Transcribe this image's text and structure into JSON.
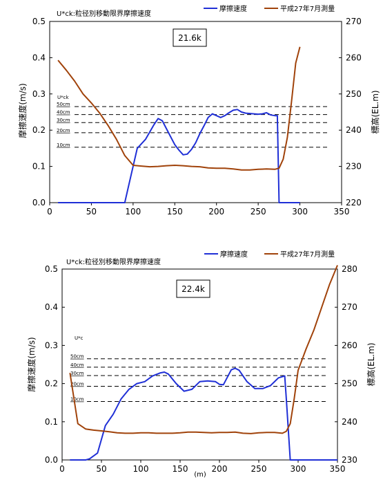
{
  "legend": {
    "friction": "摩擦速度",
    "survey": "平成27年7月測量"
  },
  "chart_data": [
    {
      "type": "line",
      "station": "21.6k",
      "uck_title": "U*ck:粒径別移動限界摩擦速度",
      "ylabel_left": "摩擦速度(m/s)",
      "ylabel_right": "標高(EL.m)",
      "xlim": [
        0,
        350
      ],
      "ylim_left": [
        0,
        0.5
      ],
      "ylim_right": [
        220,
        270
      ],
      "x_ticks": [
        0,
        50,
        100,
        150,
        200,
        250,
        300,
        350
      ],
      "y_ticks_left": [
        "0.0",
        "0.1",
        "0.2",
        "0.3",
        "0.4",
        "0.5"
      ],
      "y_ticks_right": [
        "220",
        "230",
        "240",
        "250",
        "260",
        "270"
      ],
      "threshold_header": "U*ck",
      "thresholds": [
        {
          "label": "50cm",
          "value": 0.265
        },
        {
          "label": "40cm",
          "value": 0.243
        },
        {
          "label": "30cm",
          "value": 0.221
        },
        {
          "label": "20cm",
          "value": 0.193
        },
        {
          "label": "10cm",
          "value": 0.153
        }
      ],
      "series": [
        {
          "name": "摩擦速度",
          "axis": "left",
          "color": "#1f2fd6",
          "x": [
            10,
            90,
            95,
            105,
            115,
            125,
            130,
            135,
            140,
            145,
            150,
            155,
            160,
            165,
            170,
            175,
            180,
            185,
            190,
            195,
            200,
            205,
            210,
            215,
            220,
            225,
            230,
            235,
            240,
            245,
            250,
            255,
            260,
            265,
            270,
            273,
            275,
            300
          ],
          "y": [
            0,
            0,
            0.05,
            0.15,
            0.175,
            0.215,
            0.232,
            0.226,
            0.204,
            0.182,
            0.16,
            0.145,
            0.132,
            0.134,
            0.147,
            0.165,
            0.19,
            0.212,
            0.235,
            0.245,
            0.24,
            0.235,
            0.24,
            0.248,
            0.255,
            0.257,
            0.25,
            0.247,
            0.246,
            0.245,
            0.244,
            0.245,
            0.248,
            0.242,
            0.24,
            0.24,
            0,
            0
          ]
        },
        {
          "name": "平成27年7月測量",
          "axis": "right",
          "color": "#a0420a",
          "x": [
            10,
            20,
            30,
            40,
            50,
            60,
            70,
            80,
            90,
            100,
            110,
            120,
            130,
            140,
            150,
            160,
            170,
            180,
            190,
            200,
            210,
            220,
            230,
            240,
            250,
            260,
            270,
            275,
            280,
            285,
            290,
            295,
            300
          ],
          "y": [
            259.3,
            256.5,
            253.5,
            250,
            247.5,
            244.7,
            241.3,
            237.5,
            233,
            230.3,
            230.1,
            229.9,
            230,
            230.2,
            230.3,
            230.2,
            230,
            229.9,
            229.6,
            229.5,
            229.5,
            229.3,
            229,
            229,
            229.2,
            229.3,
            229.2,
            229.5,
            232,
            238,
            248,
            258.5,
            263
          ]
        }
      ]
    },
    {
      "type": "line",
      "station": "22.4k",
      "uck_title": "U*ck:粒径別移動限界摩擦速度",
      "ylabel_left": "摩擦速度(m/s)",
      "ylabel_right": "標高(EL.m)",
      "xlabel": "(m)",
      "xlim": [
        0,
        350
      ],
      "ylim_left": [
        0,
        0.5
      ],
      "ylim_right": [
        230,
        280
      ],
      "x_ticks": [
        0,
        50,
        100,
        150,
        200,
        250,
        300,
        350
      ],
      "y_ticks_left": [
        "0.0",
        "0.1",
        "0.2",
        "0.3",
        "0.4",
        "0.5"
      ],
      "y_ticks_right": [
        "230",
        "240",
        "250",
        "260",
        "270",
        "280"
      ],
      "threshold_header": "U*c",
      "thresholds": [
        {
          "label": "50cm",
          "value": 0.265
        },
        {
          "label": "40cm",
          "value": 0.243
        },
        {
          "label": "30cm",
          "value": 0.221
        },
        {
          "label": "20cm",
          "value": 0.193
        },
        {
          "label": "10cm",
          "value": 0.153
        }
      ],
      "series": [
        {
          "name": "摩擦速度",
          "axis": "left",
          "color": "#1f2fd6",
          "x": [
            10,
            30,
            35,
            45,
            55,
            65,
            75,
            85,
            95,
            105,
            115,
            125,
            130,
            135,
            145,
            155,
            165,
            175,
            185,
            195,
            200,
            205,
            215,
            220,
            225,
            235,
            245,
            255,
            265,
            275,
            283,
            285,
            290,
            350
          ],
          "y": [
            0,
            0,
            0.003,
            0.018,
            0.09,
            0.12,
            0.16,
            0.185,
            0.2,
            0.205,
            0.22,
            0.228,
            0.23,
            0.225,
            0.2,
            0.18,
            0.185,
            0.205,
            0.207,
            0.205,
            0.198,
            0.197,
            0.236,
            0.24,
            0.235,
            0.205,
            0.187,
            0.187,
            0.195,
            0.215,
            0.22,
            0.16,
            0,
            0
          ]
        },
        {
          "name": "平成27年7月測量",
          "axis": "right",
          "color": "#a0420a",
          "x": [
            10,
            20,
            30,
            40,
            50,
            60,
            70,
            80,
            90,
            100,
            110,
            120,
            130,
            140,
            150,
            160,
            170,
            180,
            190,
            200,
            210,
            220,
            230,
            240,
            250,
            260,
            270,
            280,
            285,
            290,
            295,
            300,
            310,
            320,
            330,
            340,
            350
          ],
          "y": [
            252.8,
            239.5,
            238.1,
            237.8,
            237.6,
            237.4,
            237.1,
            237,
            237,
            237.1,
            237.1,
            237,
            237,
            237,
            237.1,
            237.3,
            237.3,
            237.2,
            237.1,
            237.2,
            237.2,
            237.3,
            237,
            236.9,
            237.1,
            237.2,
            237.2,
            237,
            237.5,
            239.5,
            246,
            253.5,
            259,
            264,
            270,
            276,
            281
          ]
        }
      ]
    }
  ]
}
